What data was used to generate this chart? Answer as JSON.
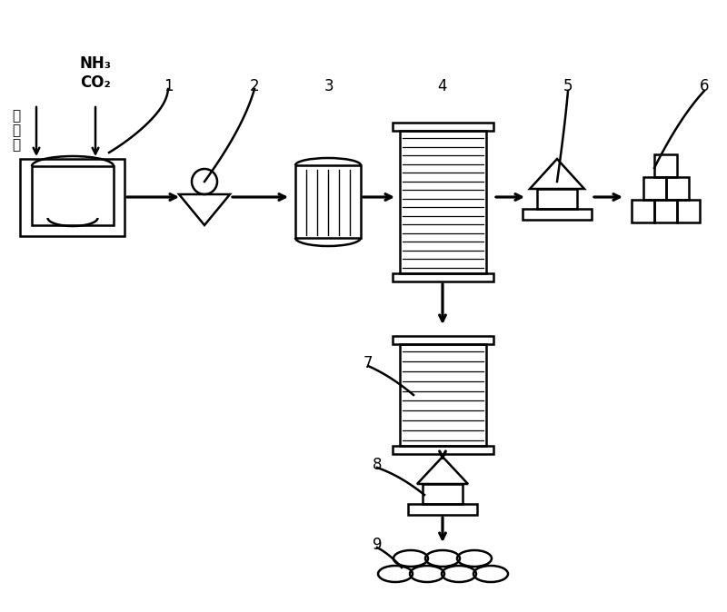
{
  "bg_color": "#ffffff",
  "line_color": "#000000",
  "figsize": [
    8.0,
    6.74
  ],
  "dpi": 100,
  "xlim": [
    0,
    800
  ],
  "ylim": [
    0,
    674
  ]
}
